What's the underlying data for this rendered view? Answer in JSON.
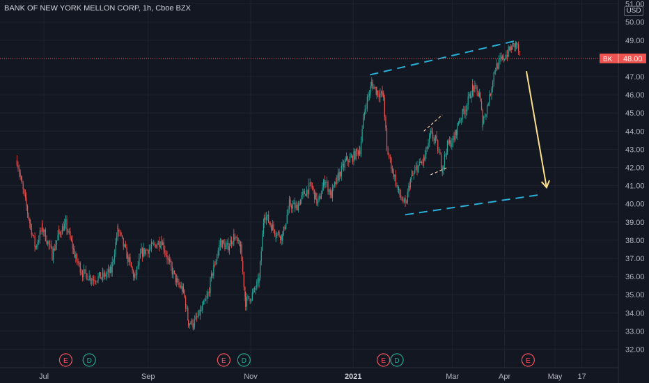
{
  "title": "BANK OF NEW YORK MELLON CORP, 1h, Cboe BZX",
  "currency": "USD",
  "colors": {
    "up": "#26a69a",
    "down": "#ef5350",
    "grid": "#1e222d",
    "axis_text": "#b2b5be",
    "price_line": "#ef5350",
    "channel": "#2ab0d8",
    "arrow": "#ffe08a",
    "bg": "#131722"
  },
  "chart_data": {
    "type": "candlestick",
    "symbol": "BK",
    "last_price": "48.00",
    "x_ticks": [
      "Jul",
      "Sep",
      "Nov",
      "2021",
      "Mar",
      "Apr",
      "May",
      "17"
    ],
    "ylim": [
      31.5,
      51.1
    ],
    "y_ticks": [
      32,
      33,
      34,
      35,
      36,
      37,
      38,
      39,
      40,
      41,
      42,
      43,
      44,
      45,
      46,
      47,
      48,
      49,
      50,
      51
    ],
    "y_tick_labels": [
      "32.00",
      "33.00",
      "34.00",
      "35.00",
      "36.00",
      "37.00",
      "38.00",
      "39.00",
      "40.00",
      "41.00",
      "42.00",
      "43.00",
      "44.00",
      "45.00",
      "46.00",
      "47.00",
      "48.00",
      "49.00",
      "50.00",
      "51.00"
    ],
    "price_path": [
      [
        "Jun 15",
        42.4
      ],
      [
        "Jun 18",
        41.0
      ],
      [
        "Jun 23",
        38.8
      ],
      [
        "Jun 26",
        37.6
      ],
      [
        "Jun 30",
        38.7
      ],
      [
        "Jul 6",
        37.2
      ],
      [
        "Jul 10",
        38.4
      ],
      [
        "Jul 14",
        38.9
      ],
      [
        "Jul 20",
        37.0
      ],
      [
        "Jul 24",
        36.2
      ],
      [
        "Jul 30",
        35.9
      ],
      [
        "Aug 5",
        36.0
      ],
      [
        "Aug 10",
        36.3
      ],
      [
        "Aug 14",
        38.6
      ],
      [
        "Aug 20",
        37.0
      ],
      [
        "Aug 24",
        35.9
      ],
      [
        "Aug 28",
        37.3
      ],
      [
        "Sep 3",
        37.6
      ],
      [
        "Sep 9",
        38.0
      ],
      [
        "Sep 14",
        36.6
      ],
      [
        "Sep 18",
        35.7
      ],
      [
        "Sep 22",
        35.2
      ],
      [
        "Sep 25",
        33.5
      ],
      [
        "Sep 28",
        33.4
      ],
      [
        "Oct 2",
        34.0
      ],
      [
        "Oct 6",
        34.8
      ],
      [
        "Oct 10",
        36.5
      ],
      [
        "Oct 14",
        37.9
      ],
      [
        "Oct 18",
        37.6
      ],
      [
        "Oct 22",
        38.2
      ],
      [
        "Oct 26",
        37.5
      ],
      [
        "Oct 29",
        34.6
      ],
      [
        "Nov 2",
        35.0
      ],
      [
        "Nov 6",
        35.8
      ],
      [
        "Nov 9",
        39.5
      ],
      [
        "Nov 12",
        39.0
      ],
      [
        "Nov 16",
        38.4
      ],
      [
        "Nov 20",
        38.2
      ],
      [
        "Nov 24",
        40.0
      ],
      [
        "Nov 28",
        39.8
      ],
      [
        "Dec 3",
        40.6
      ],
      [
        "Dec 7",
        41.0
      ],
      [
        "Dec 11",
        40.0
      ],
      [
        "Dec 15",
        41.3
      ],
      [
        "Dec 19",
        40.5
      ],
      [
        "Dec 23",
        41.5
      ],
      [
        "Dec 28",
        42.4
      ],
      [
        "Dec 31",
        42.5
      ],
      [
        "Jan 5",
        43.0
      ],
      [
        "Jan 8",
        45.3
      ],
      [
        "Jan 12",
        46.6
      ],
      [
        "Jan 15",
        46.2
      ],
      [
        "Jan 19",
        45.9
      ],
      [
        "Jan 21",
        43.0
      ],
      [
        "Jan 25",
        41.7
      ],
      [
        "Jan 28",
        40.6
      ],
      [
        "Feb 1",
        39.9
      ],
      [
        "Feb 4",
        41.3
      ],
      [
        "Feb 8",
        42.0
      ],
      [
        "Feb 12",
        42.4
      ],
      [
        "Feb 16",
        43.8
      ],
      [
        "Feb 19",
        43.5
      ],
      [
        "Feb 23",
        42.0
      ],
      [
        "Feb 26",
        43.2
      ],
      [
        "Mar 2",
        43.6
      ],
      [
        "Mar 5",
        44.6
      ],
      [
        "Mar 9",
        45.3
      ],
      [
        "Mar 13",
        46.4
      ],
      [
        "Mar 17",
        46.0
      ],
      [
        "Mar 19",
        44.5
      ],
      [
        "Mar 23",
        45.8
      ],
      [
        "Mar 26",
        47.4
      ],
      [
        "Mar 30",
        47.9
      ],
      [
        "Apr 2",
        48.2
      ],
      [
        "Apr 5",
        48.6
      ],
      [
        "Apr 8",
        48.8
      ],
      [
        "Apr 10",
        48.2
      ]
    ],
    "earnings_markers": [
      "Jul 14",
      "Oct 16",
      "Jan 19",
      "Apr 15"
    ],
    "dividend_markers": [
      "Jul 28",
      "Oct 28",
      "Jan 27"
    ],
    "drawings": {
      "channel_upper": [
        [
          "Jan 11",
          47.1
        ],
        [
          "Apr 9",
          49.0
        ]
      ],
      "channel_lower": [
        [
          "Feb 1",
          39.4
        ],
        [
          "Apr 22",
          40.5
        ]
      ],
      "flag_upper": [
        [
          "Feb 12",
          44.0
        ],
        [
          "Feb 23",
          44.9
        ]
      ],
      "flag_lower": [
        [
          "Feb 16",
          41.6
        ],
        [
          "Feb 26",
          42.0
        ]
      ],
      "arrow": [
        [
          "Apr 14",
          47.3
        ],
        [
          "Apr 26",
          40.9
        ]
      ]
    }
  }
}
